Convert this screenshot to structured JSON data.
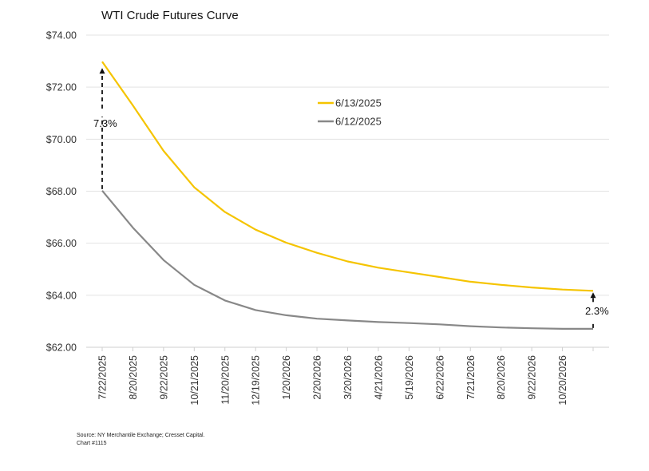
{
  "title": "WTI Crude Futures Curve",
  "source_line1": "Source: NY Merchantile Exchange; Cresset Capital.",
  "source_line2": "Chart #1115",
  "colors": {
    "series_0613": "#f5c400",
    "series_0612": "#888888",
    "grid": "#e3e3e3",
    "axis": "#cfcfcf"
  },
  "chart_data": {
    "type": "line",
    "title": "WTI Crude Futures Curve",
    "xlabel": "",
    "ylabel": "",
    "ylim": [
      62,
      74
    ],
    "y_ticks": [
      "$62.00",
      "$64.00",
      "$66.00",
      "$68.00",
      "$70.00",
      "$72.00",
      "$74.00"
    ],
    "x_tick_labels": [
      "7/22/2025",
      "8/20/2025",
      "9/22/2025",
      "10/21/2025",
      "11/20/2025",
      "12/19/2025",
      "1/20/2026",
      "2/20/2026",
      "3/20/2026",
      "4/21/2026",
      "5/19/2026",
      "6/22/2026",
      "7/21/2026",
      "8/20/2026",
      "9/22/2026",
      "10/20/2026",
      ""
    ],
    "grid": true,
    "legend_position": "top-center",
    "series": [
      {
        "name": "6/13/2025",
        "values": [
          72.98,
          71.3,
          69.55,
          68.15,
          67.2,
          66.52,
          66.02,
          65.63,
          65.3,
          65.06,
          64.88,
          64.7,
          64.52,
          64.4,
          64.3,
          64.22,
          64.17
        ]
      },
      {
        "name": "6/12/2025",
        "values": [
          68.02,
          66.6,
          65.35,
          64.4,
          63.8,
          63.43,
          63.23,
          63.1,
          63.03,
          62.97,
          62.93,
          62.88,
          62.81,
          62.76,
          62.73,
          62.71,
          62.71
        ]
      }
    ],
    "annotations": [
      {
        "text": "7.3%",
        "at": "7/22/2025"
      },
      {
        "text": "2.3%",
        "at": "last contract"
      }
    ]
  }
}
